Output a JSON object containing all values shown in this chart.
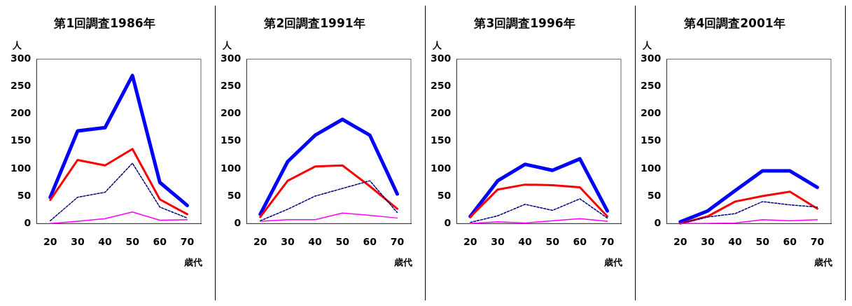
{
  "chart_data": [
    {
      "type": "line",
      "title": "第1回調査1986年",
      "xlabel": "歳代",
      "ylabel": "人",
      "categories": [
        "20",
        "30",
        "40",
        "50",
        "60",
        "70"
      ],
      "ylim": [
        0,
        300
      ],
      "yticks": [
        0,
        50,
        100,
        150,
        200,
        250,
        300
      ],
      "grid": false,
      "legend": false,
      "marker": "none",
      "series": [
        {
          "color": "#0000ff",
          "line_style": "solid",
          "values": [
            48,
            169,
            175,
            270,
            75,
            33
          ]
        },
        {
          "color": "#ff0000",
          "line_style": "solid",
          "values": [
            43,
            116,
            106,
            136,
            44,
            17
          ]
        },
        {
          "color": "#000080",
          "line_style": "dotted",
          "values": [
            5,
            48,
            57,
            110,
            30,
            10
          ]
        },
        {
          "color": "#ff00ff",
          "line_style": "solid",
          "values": [
            0,
            4,
            9,
            21,
            6,
            7
          ]
        }
      ]
    },
    {
      "type": "line",
      "title": "第2回調査1991年",
      "xlabel": "歳代",
      "ylabel": "人",
      "categories": [
        "20",
        "30",
        "40",
        "50",
        "60",
        "70"
      ],
      "ylim": [
        0,
        300
      ],
      "yticks": [
        0,
        50,
        100,
        150,
        200,
        250,
        300
      ],
      "grid": false,
      "legend": false,
      "marker": "none",
      "series": [
        {
          "color": "#0000ff",
          "line_style": "solid",
          "values": [
            17,
            113,
            161,
            190,
            161,
            54
          ]
        },
        {
          "color": "#ff0000",
          "line_style": "solid",
          "values": [
            12,
            78,
            104,
            106,
            68,
            27
          ]
        },
        {
          "color": "#000080",
          "line_style": "dotted",
          "values": [
            5,
            26,
            50,
            64,
            78,
            20
          ]
        },
        {
          "color": "#ff00ff",
          "line_style": "solid",
          "values": [
            4,
            7,
            7,
            19,
            15,
            10
          ]
        }
      ]
    },
    {
      "type": "line",
      "title": "第3回調査1996年",
      "xlabel": "歳代",
      "ylabel": "人",
      "categories": [
        "20",
        "30",
        "40",
        "50",
        "60",
        "70"
      ],
      "ylim": [
        0,
        300
      ],
      "yticks": [
        0,
        50,
        100,
        150,
        200,
        250,
        300
      ],
      "grid": false,
      "legend": false,
      "marker": "none",
      "series": [
        {
          "color": "#0000ff",
          "line_style": "solid",
          "values": [
            13,
            78,
            108,
            97,
            118,
            23
          ]
        },
        {
          "color": "#ff0000",
          "line_style": "solid",
          "values": [
            12,
            62,
            71,
            70,
            66,
            13
          ]
        },
        {
          "color": "#000080",
          "line_style": "dotted",
          "values": [
            2,
            14,
            35,
            24,
            45,
            10
          ]
        },
        {
          "color": "#ff00ff",
          "line_style": "solid",
          "values": [
            0,
            3,
            1,
            5,
            9,
            4
          ]
        }
      ]
    },
    {
      "type": "line",
      "title": "第4回調査2001年",
      "xlabel": "歳代",
      "ylabel": "人",
      "categories": [
        "20",
        "30",
        "40",
        "50",
        "60",
        "70"
      ],
      "ylim": [
        0,
        300
      ],
      "yticks": [
        0,
        50,
        100,
        150,
        200,
        250,
        300
      ],
      "grid": false,
      "legend": false,
      "marker": "none",
      "series": [
        {
          "color": "#0000ff",
          "line_style": "solid",
          "values": [
            3,
            23,
            60,
            96,
            96,
            66
          ]
        },
        {
          "color": "#ff0000",
          "line_style": "solid",
          "values": [
            0,
            13,
            40,
            50,
            58,
            27
          ]
        },
        {
          "color": "#000080",
          "line_style": "dotted",
          "values": [
            0,
            12,
            18,
            40,
            34,
            30
          ]
        },
        {
          "color": "#ff00ff",
          "line_style": "solid",
          "values": [
            0,
            0,
            1,
            7,
            5,
            7
          ]
        }
      ]
    }
  ]
}
